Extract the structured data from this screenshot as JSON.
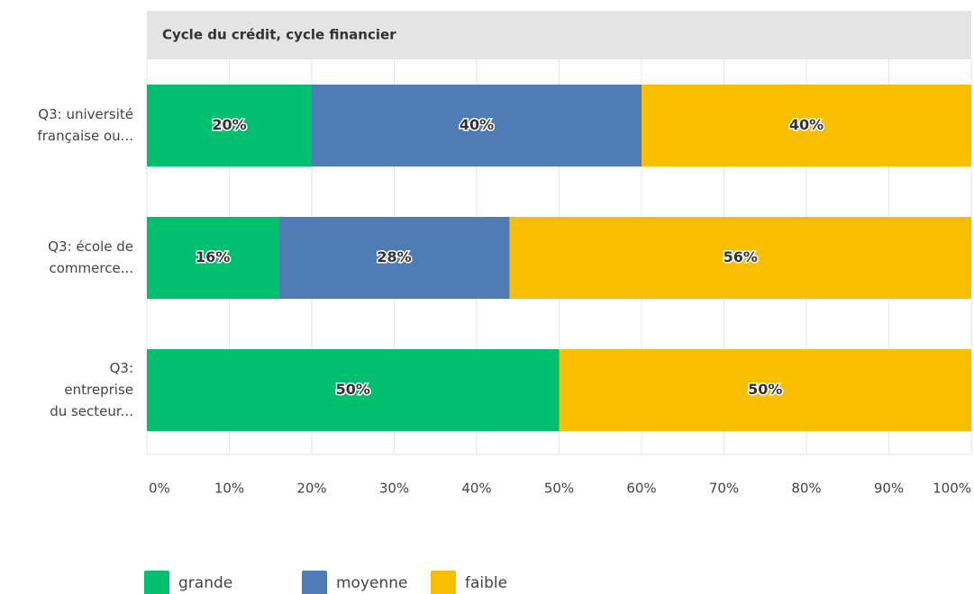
{
  "chart_data": {
    "type": "stacked-barh",
    "title": "Cycle du crédit, cycle financier",
    "categories": [
      [
        "Q3: université",
        "française ou..."
      ],
      [
        "Q3: école de",
        "commerce..."
      ],
      [
        "Q3:",
        "entreprise",
        "du secteur..."
      ]
    ],
    "series": [
      {
        "name": "grande",
        "color": "#00bf6f",
        "values": [
          20,
          16,
          50
        ],
        "value_labels": [
          "20%",
          "16%",
          "50%"
        ]
      },
      {
        "name": "moyenne",
        "color": "#507cb6",
        "values": [
          40,
          28,
          null
        ],
        "value_labels": [
          "40%",
          "28%",
          null
        ]
      },
      {
        "name": "faible",
        "color": "#f9be00",
        "values": [
          40,
          56,
          50
        ],
        "value_labels": [
          "40%",
          "56%",
          "50%"
        ]
      }
    ],
    "xlim": [
      0,
      100
    ],
    "xticks": [
      {
        "value": 0,
        "label": "0%"
      },
      {
        "value": 10,
        "label": "10%"
      },
      {
        "value": 20,
        "label": "20%"
      },
      {
        "value": 30,
        "label": "30%"
      },
      {
        "value": 40,
        "label": "40%"
      },
      {
        "value": 50,
        "label": "50%"
      },
      {
        "value": 60,
        "label": "60%"
      },
      {
        "value": 70,
        "label": "70%"
      },
      {
        "value": 80,
        "label": "80%"
      },
      {
        "value": 90,
        "label": "90%"
      },
      {
        "value": 100,
        "label": "100%"
      }
    ],
    "grid": true,
    "legend": "bottom"
  }
}
